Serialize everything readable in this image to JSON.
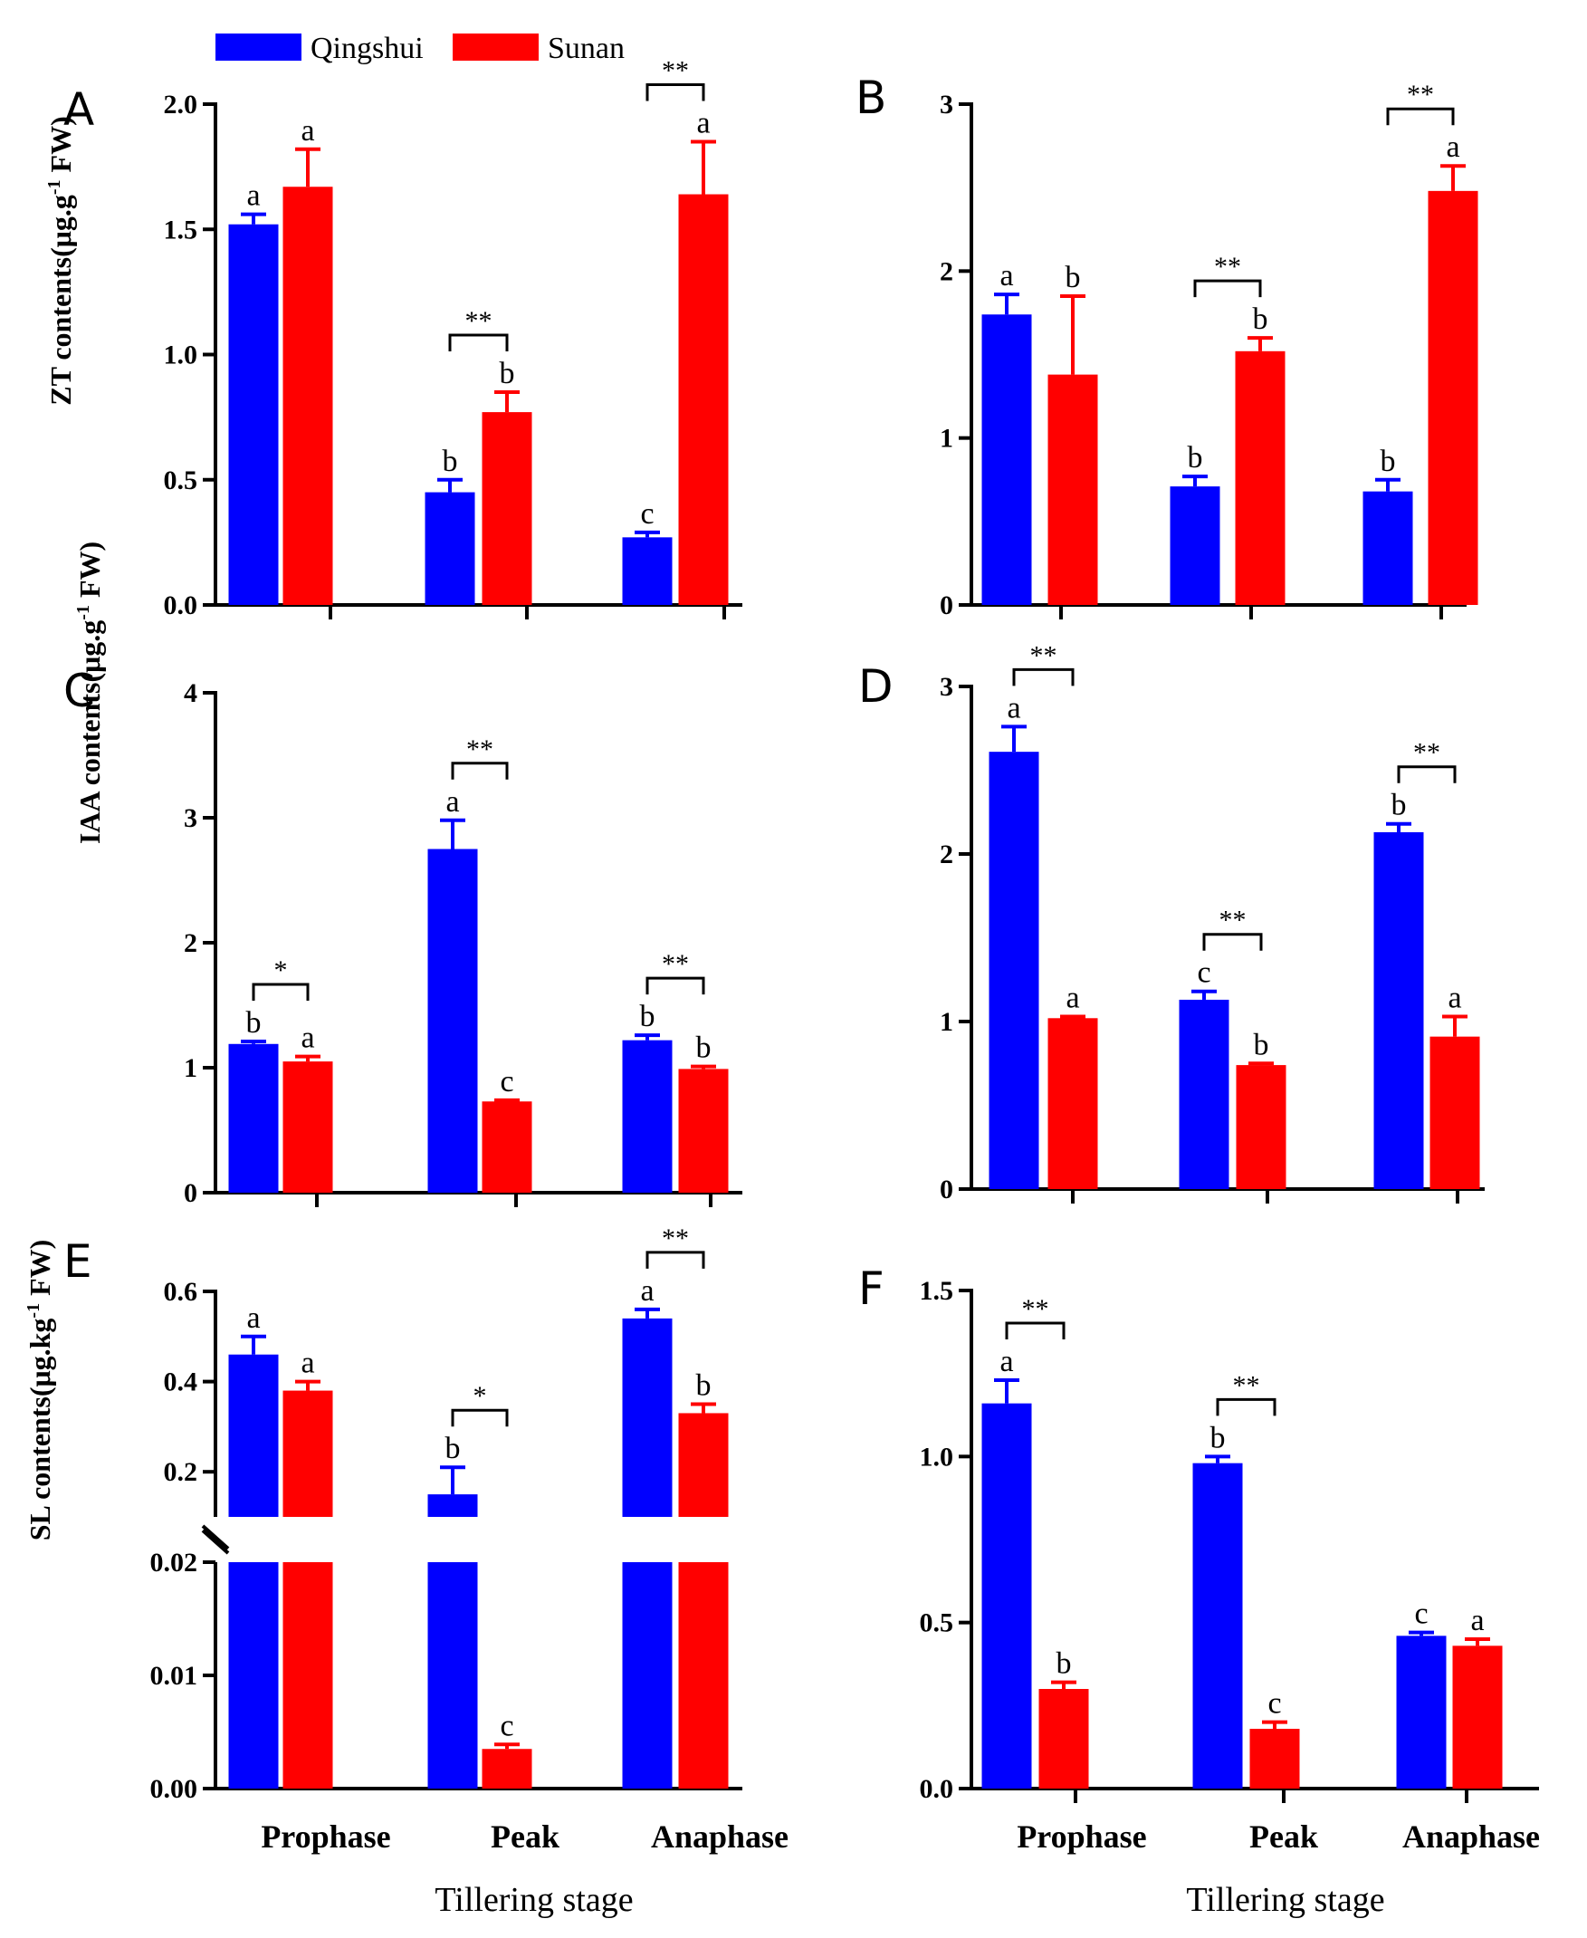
{
  "colors": {
    "qingshui": "#0000ff",
    "sunan": "#ff0000",
    "axis": "#000000"
  },
  "legend": [
    {
      "name": "Qingshui",
      "color": "#0000ff"
    },
    {
      "name": "Sunan",
      "color": "#ff0000"
    }
  ],
  "labels": {
    "zt_ylabel": "ZT contents(μg.g",
    "zt_sup": "-1",
    "zt_tail": " FW)",
    "iaa_ylabel": "IAA contents(μg.g",
    "iaa_sup": "-1",
    "iaa_tail": " FW)",
    "sl_ylabel": "SL contents(μg.kg",
    "sl_sup": "-1",
    "sl_tail": " FW)",
    "xlabel_left": "Tillering stage",
    "xlabel_right": "Tillering stage"
  },
  "chart_data": [
    {
      "id": "A",
      "type": "bar",
      "categories": [
        "Prophase",
        "Peak",
        "Anaphase"
      ],
      "ylim": [
        0,
        2.0
      ],
      "yticks": [
        "0.0",
        "0.5",
        "1.0",
        "1.5",
        "2.0"
      ],
      "ytickvals": [
        0,
        0.5,
        1.0,
        1.5,
        2.0
      ],
      "series": [
        {
          "name": "Qingshui",
          "values": [
            1.52,
            0.45,
            0.27
          ],
          "errors": [
            0.04,
            0.05,
            0.02
          ],
          "letters": [
            "a",
            "b",
            "c"
          ]
        },
        {
          "name": "Sunan",
          "values": [
            1.67,
            0.77,
            1.64
          ],
          "errors": [
            0.15,
            0.08,
            0.21
          ],
          "letters": [
            "a",
            "b",
            "a"
          ]
        }
      ],
      "sig": [
        null,
        "**",
        "**"
      ]
    },
    {
      "id": "B",
      "type": "bar",
      "categories": [
        "Prophase",
        "Peak",
        "Anaphase"
      ],
      "ylim": [
        0,
        3
      ],
      "yticks": [
        "0",
        "1",
        "2",
        "3"
      ],
      "ytickvals": [
        0,
        1,
        2,
        3
      ],
      "series": [
        {
          "name": "Qingshui",
          "values": [
            1.74,
            0.71,
            0.68
          ],
          "errors": [
            0.12,
            0.06,
            0.07
          ],
          "letters": [
            "a",
            "b",
            "b"
          ]
        },
        {
          "name": "Sunan",
          "values": [
            1.38,
            1.52,
            2.48
          ],
          "errors": [
            0.47,
            0.08,
            0.15
          ],
          "letters": [
            "b",
            "b",
            "a"
          ]
        }
      ],
      "sig": [
        null,
        "**",
        "**"
      ]
    },
    {
      "id": "C",
      "type": "bar",
      "categories": [
        "Prophase",
        "Peak",
        "Anaphase"
      ],
      "ylim": [
        0,
        4
      ],
      "yticks": [
        "0",
        "1",
        "2",
        "3",
        "4"
      ],
      "ytickvals": [
        0,
        1,
        2,
        3,
        4
      ],
      "series": [
        {
          "name": "Qingshui",
          "values": [
            1.19,
            2.75,
            1.22
          ],
          "errors": [
            0.02,
            0.23,
            0.04
          ],
          "letters": [
            "b",
            "a",
            "b"
          ]
        },
        {
          "name": "Sunan",
          "values": [
            1.05,
            0.73,
            0.99
          ],
          "errors": [
            0.04,
            0.01,
            0.02
          ],
          "letters": [
            "a",
            "c",
            "b"
          ]
        }
      ],
      "sig": [
        "*",
        "**",
        "**"
      ]
    },
    {
      "id": "D",
      "type": "bar",
      "categories": [
        "Prophase",
        "Peak",
        "Anaphase"
      ],
      "ylim": [
        0,
        3
      ],
      "yticks": [
        "0",
        "1",
        "2",
        "3"
      ],
      "ytickvals": [
        0,
        1,
        2,
        3
      ],
      "series": [
        {
          "name": "Qingshui",
          "values": [
            2.61,
            1.13,
            2.13
          ],
          "errors": [
            0.15,
            0.05,
            0.05
          ],
          "letters": [
            "a",
            "c",
            "b"
          ]
        },
        {
          "name": "Sunan",
          "values": [
            1.02,
            0.74,
            0.91
          ],
          "errors": [
            0.01,
            0.01,
            0.12
          ],
          "letters": [
            "a",
            "b",
            "a"
          ]
        }
      ],
      "sig": [
        "**",
        "**",
        "**"
      ]
    },
    {
      "id": "E",
      "type": "bar",
      "categories": [
        "Prophase",
        "Peak",
        "Anaphase"
      ],
      "broken_axis": true,
      "lower_ylim": [
        0,
        0.02
      ],
      "lower_yticks": [
        "0.00",
        "0.01",
        "0.02"
      ],
      "lower_tickvals": [
        0,
        0.01,
        0.02
      ],
      "upper_ylim": [
        0.1,
        0.6
      ],
      "upper_yticks": [
        "0.2",
        "0.4",
        "0.6"
      ],
      "upper_tickvals": [
        0.2,
        0.4,
        0.6
      ],
      "series": [
        {
          "name": "Qingshui",
          "values": [
            0.46,
            0.15,
            0.54
          ],
          "errors": [
            0.04,
            0.06,
            0.02
          ],
          "letters": [
            "a",
            "b",
            "a"
          ]
        },
        {
          "name": "Sunan",
          "values": [
            0.38,
            0.0035,
            0.33
          ],
          "errors": [
            0.02,
            0.0004,
            0.02
          ],
          "letters": [
            "a",
            "c",
            "b"
          ]
        }
      ],
      "sig": [
        null,
        "*",
        "**"
      ]
    },
    {
      "id": "F",
      "type": "bar",
      "categories": [
        "Prophase",
        "Peak",
        "Anaphase"
      ],
      "ylim": [
        0,
        1.5
      ],
      "yticks": [
        "0.0",
        "0.5",
        "1.0",
        "1.5"
      ],
      "ytickvals": [
        0,
        0.5,
        1.0,
        1.5
      ],
      "series": [
        {
          "name": "Qingshui",
          "values": [
            1.16,
            0.98,
            0.46
          ],
          "errors": [
            0.07,
            0.02,
            0.01
          ],
          "letters": [
            "a",
            "b",
            "c"
          ]
        },
        {
          "name": "Sunan",
          "values": [
            0.3,
            0.18,
            0.43
          ],
          "errors": [
            0.02,
            0.02,
            0.02
          ],
          "letters": [
            "b",
            "c",
            "a"
          ]
        }
      ],
      "sig": [
        "**",
        "**",
        null
      ]
    }
  ]
}
